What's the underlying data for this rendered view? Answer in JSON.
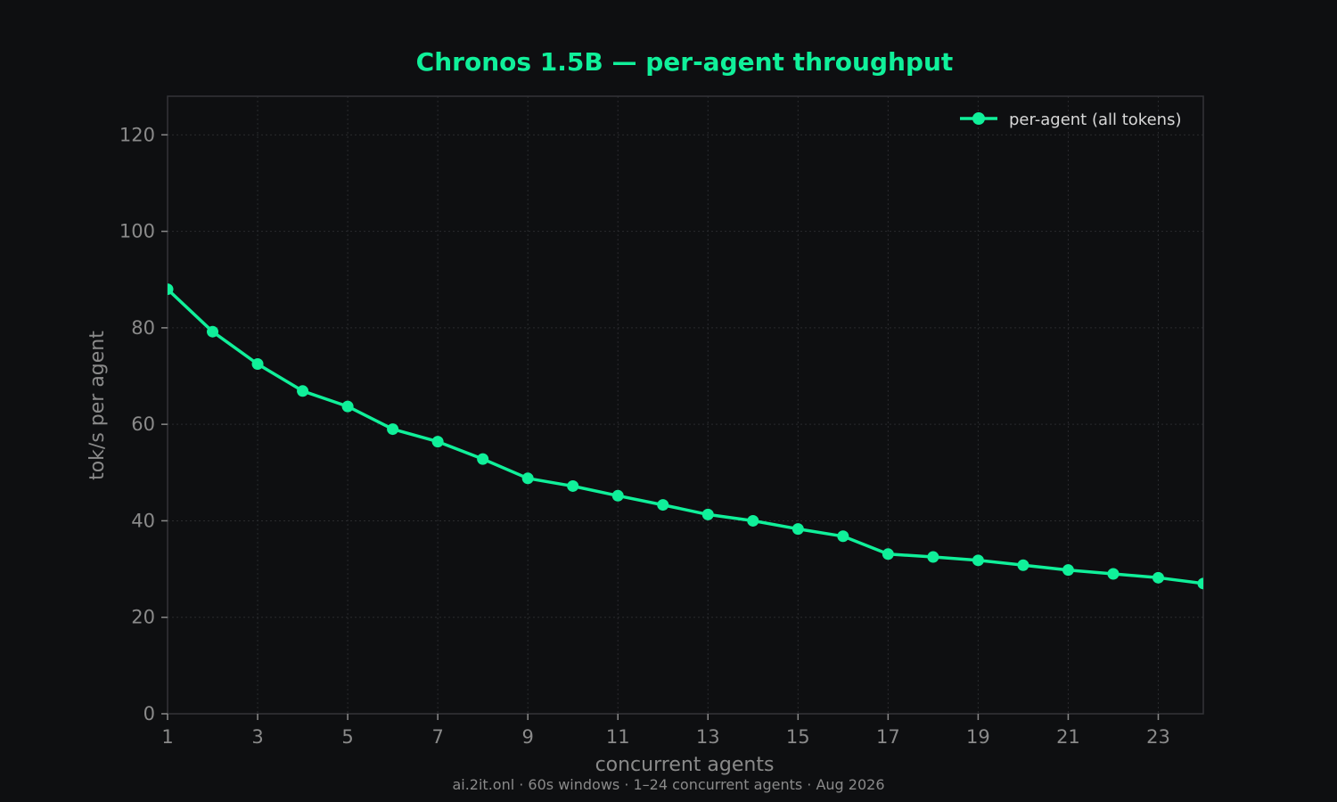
{
  "colors": {
    "background": "#0e0f11",
    "accent": "#10f09a",
    "grid": "#2a2b2e",
    "axis_frame": "#333438",
    "tick_text": "#8a8a8a",
    "legend_text": "#d8d8d8"
  },
  "footer": "ai.2it.onl · 60s windows · 1–24 concurrent agents · Aug 2026",
  "chart_data": {
    "type": "line",
    "title": "Chronos 1.5B — per-agent throughput",
    "xlabel": "concurrent agents",
    "ylabel": "tok/s per agent",
    "xlim": [
      1,
      24
    ],
    "ylim": [
      0,
      128
    ],
    "xticks": [
      1,
      3,
      5,
      7,
      9,
      11,
      13,
      15,
      17,
      19,
      21,
      23
    ],
    "yticks": [
      0,
      20,
      40,
      60,
      80,
      100,
      120
    ],
    "grid": true,
    "legend_position": "top-right",
    "x": [
      1,
      2,
      3,
      4,
      5,
      6,
      7,
      8,
      9,
      10,
      11,
      12,
      13,
      14,
      15,
      16,
      17,
      18,
      19,
      20,
      21,
      22,
      23,
      24
    ],
    "series": [
      {
        "name": "per-agent (all tokens)",
        "marker": "circle",
        "values": [
          88.0,
          79.2,
          72.5,
          66.9,
          63.7,
          59.0,
          56.4,
          52.8,
          48.8,
          47.2,
          45.2,
          43.3,
          41.3,
          40.0,
          38.3,
          36.8,
          33.1,
          32.5,
          31.8,
          30.8,
          29.8,
          29.0,
          28.2,
          27.0
        ]
      }
    ]
  }
}
